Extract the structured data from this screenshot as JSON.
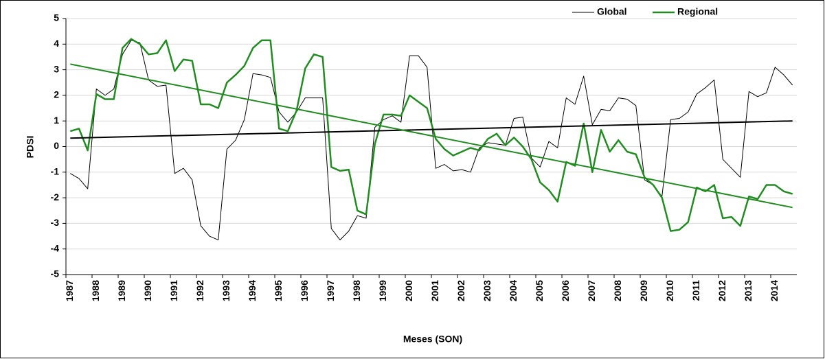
{
  "chart_data": {
    "type": "line",
    "x_label": "Meses (SON)",
    "y_label": "PDSI",
    "categories": [
      "1987",
      null,
      null,
      "1988",
      null,
      null,
      "1989",
      null,
      null,
      "1990",
      null,
      null,
      "1991",
      null,
      null,
      "1992",
      null,
      null,
      "1993",
      null,
      null,
      "1994",
      null,
      null,
      "1995",
      null,
      null,
      "1996",
      null,
      null,
      "1997",
      null,
      null,
      "1998",
      null,
      null,
      "1999",
      null,
      null,
      "2000",
      null,
      null,
      "2001",
      null,
      null,
      "2002",
      null,
      null,
      "2003",
      null,
      null,
      "2004",
      null,
      null,
      "2005",
      null,
      null,
      "2006",
      null,
      null,
      "2007",
      null,
      null,
      "2008",
      null,
      null,
      "2009",
      null,
      null,
      "2010",
      null,
      null,
      "2011",
      null,
      null,
      "2012",
      null,
      null,
      "2013",
      null,
      null,
      "2014",
      null,
      null
    ],
    "series": [
      {
        "name": "Global",
        "color": "#000000",
        "values": [
          -1.05,
          -1.25,
          -1.65,
          2.25,
          2.0,
          2.25,
          3.6,
          4.15,
          4.05,
          2.6,
          2.35,
          2.4,
          -1.05,
          -0.85,
          -1.3,
          -3.1,
          -3.5,
          -3.65,
          -0.1,
          0.25,
          1.05,
          2.85,
          2.8,
          2.7,
          1.35,
          0.95,
          1.35,
          1.9,
          1.9,
          1.9,
          -3.2,
          -3.65,
          -3.3,
          -2.7,
          -2.8,
          0.75,
          1.05,
          1.2,
          0.95,
          3.55,
          3.55,
          3.1,
          -0.85,
          -0.7,
          -0.95,
          -0.9,
          -1.0,
          -0.05,
          0.15,
          0.1,
          0.05,
          1.1,
          1.15,
          -0.45,
          -0.8,
          0.2,
          -0.05,
          1.9,
          1.65,
          2.75,
          0.85,
          1.45,
          1.4,
          1.9,
          1.85,
          1.6,
          -1.3,
          -1.5,
          -1.95,
          1.05,
          1.1,
          1.35,
          2.05,
          2.3,
          2.6,
          -0.5,
          -0.85,
          -1.2,
          2.15,
          1.95,
          2.1,
          3.1,
          2.8,
          2.4
        ]
      },
      {
        "name": "Regional",
        "color": "#228b22",
        "values": [
          0.6,
          0.7,
          -0.15,
          2.05,
          1.85,
          1.85,
          3.85,
          4.2,
          4.0,
          3.6,
          3.65,
          4.15,
          2.95,
          3.4,
          3.35,
          1.65,
          1.65,
          1.5,
          2.5,
          2.8,
          3.15,
          3.85,
          4.15,
          4.15,
          0.7,
          0.6,
          1.4,
          3.05,
          3.6,
          3.5,
          -0.8,
          -0.95,
          -0.9,
          -2.5,
          -2.65,
          0.1,
          1.25,
          1.25,
          1.2,
          2.0,
          1.75,
          1.5,
          0.3,
          -0.1,
          -0.35,
          -0.2,
          -0.05,
          -0.15,
          0.3,
          0.5,
          0.05,
          0.35,
          0.0,
          -0.5,
          -1.4,
          -1.7,
          -2.15,
          -0.6,
          -0.75,
          0.9,
          -1.0,
          0.65,
          -0.2,
          0.25,
          -0.2,
          -0.3,
          -1.2,
          -1.5,
          -2.0,
          -3.3,
          -3.25,
          -2.95,
          -1.6,
          -1.75,
          -1.5,
          -2.8,
          -2.75,
          -3.1,
          -1.95,
          -2.05,
          -1.5,
          -1.5,
          -1.75,
          -1.85
        ]
      }
    ],
    "trendlines": [
      {
        "color": "#000000",
        "values": [
          0.33,
          1.0
        ]
      },
      {
        "color": "#228b22",
        "values": [
          3.22,
          -2.38
        ]
      }
    ],
    "ylim": [
      -5,
      5
    ],
    "yticks": [
      -5,
      -4,
      -3,
      -2,
      -1,
      0,
      1,
      2,
      3,
      4,
      5
    ],
    "grid": true
  }
}
